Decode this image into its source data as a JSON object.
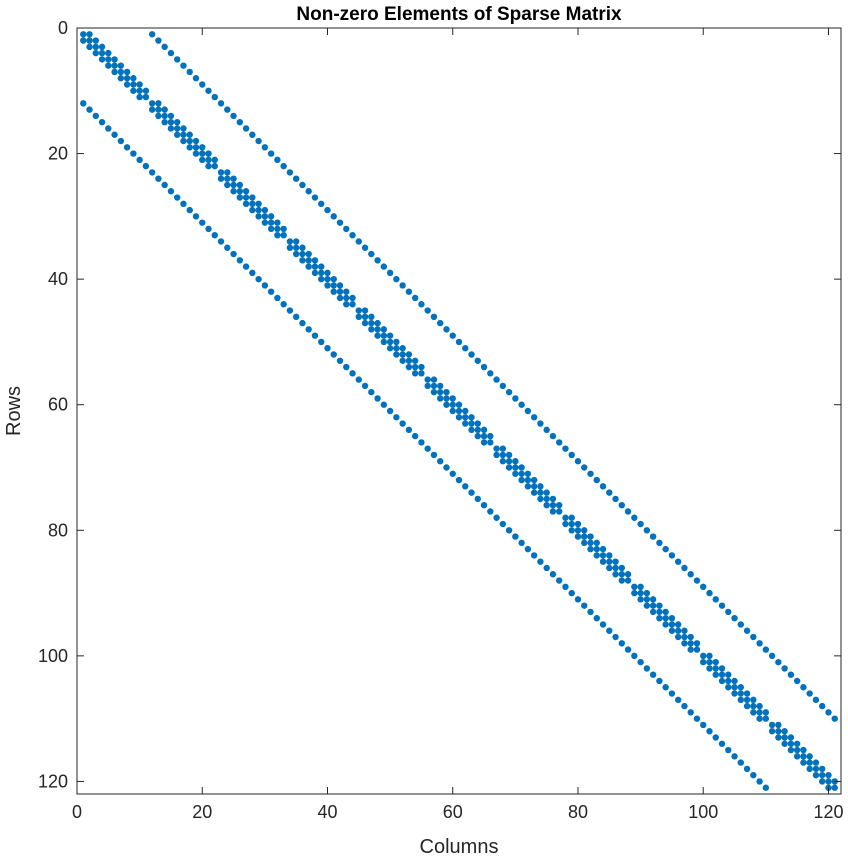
{
  "chart_data": {
    "type": "scatter",
    "title": "Non-zero Elements of Sparse Matrix",
    "xlabel": "Columns",
    "ylabel": "Rows",
    "xlim": [
      0,
      122
    ],
    "ylim": [
      0,
      122
    ],
    "y_reversed": true,
    "x_ticks": [
      0,
      20,
      40,
      60,
      80,
      100,
      120
    ],
    "y_ticks": [
      0,
      20,
      40,
      60,
      80,
      100,
      120
    ],
    "grid": false,
    "legend": "none",
    "marker_color": "#0072BD",
    "structure": {
      "block_size": 11,
      "num_blocks": 11,
      "n": 121,
      "diagonal_offsets": [
        -1,
        0,
        1
      ],
      "off_diagonal_offsets": [
        -11,
        11
      ]
    },
    "extra_points": [
      [
        12,
        1
      ],
      [
        1,
        12
      ],
      [
        110,
        121
      ],
      [
        121,
        110
      ]
    ]
  }
}
